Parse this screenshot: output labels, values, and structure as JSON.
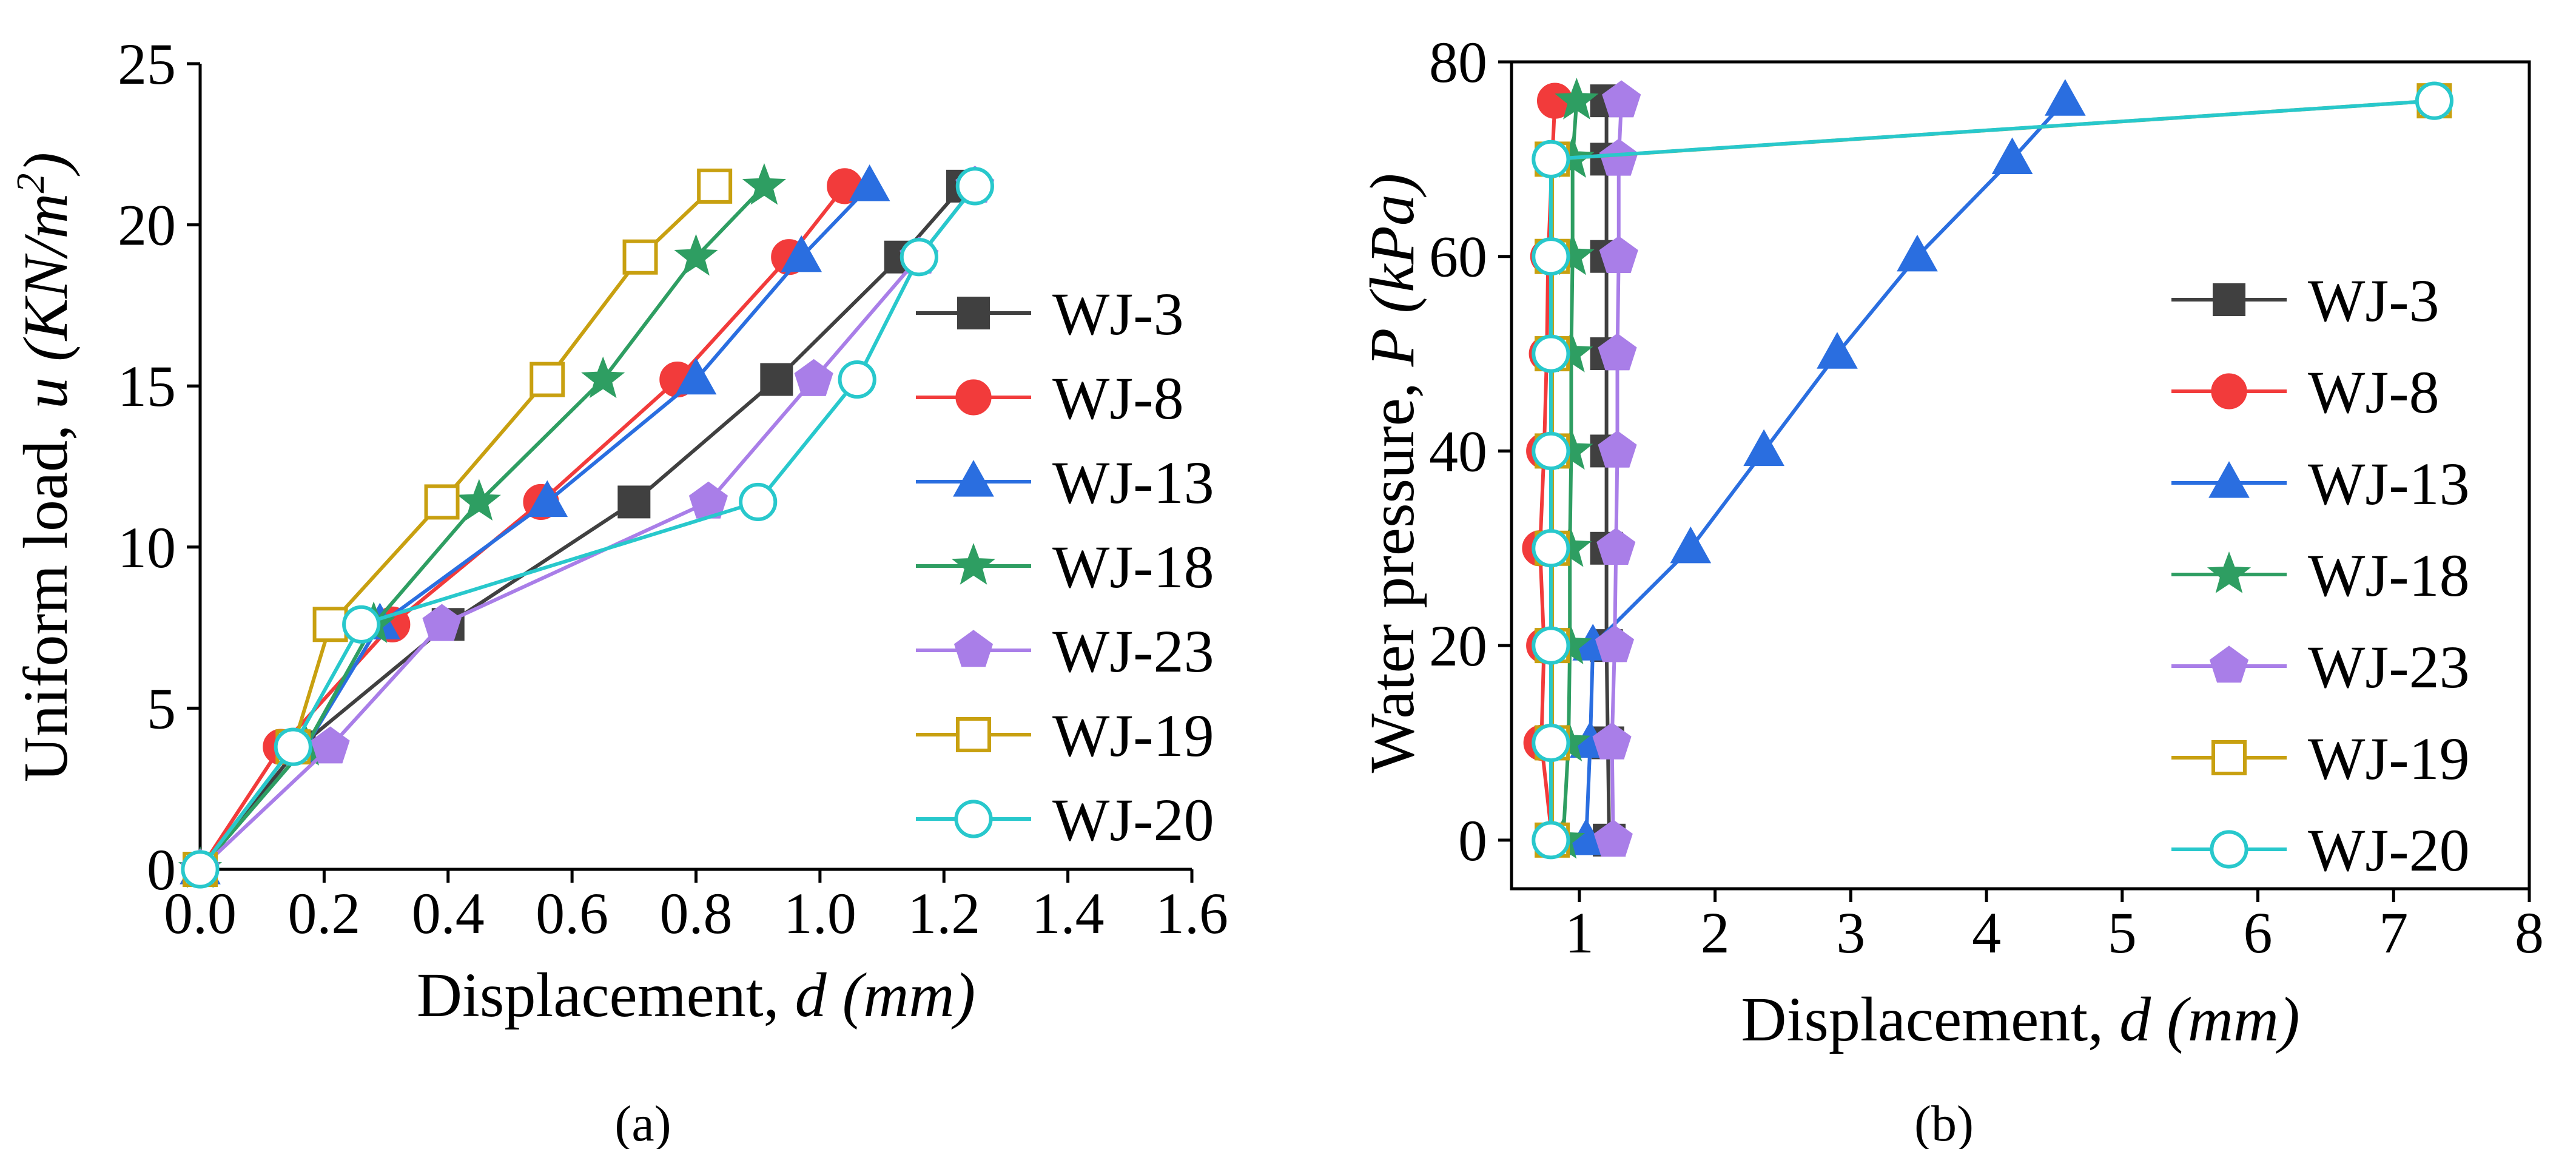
{
  "chart_data": [
    {
      "type": "line",
      "panel_label": "(a)",
      "xlabel": "Displacement, ",
      "xlabel_italic": "d (mm)",
      "ylabel": "Uniform load, ",
      "ylabel_italic": "u (KN/m",
      "ylabel_sup": "2",
      "ylabel_end": ")",
      "xlim": [
        0.0,
        1.6
      ],
      "ylim": [
        0,
        25
      ],
      "xticks": [
        0.0,
        0.2,
        0.4,
        0.6,
        0.8,
        1.0,
        1.2,
        1.4,
        1.6
      ],
      "xtick_labels": [
        "0.0",
        "0.2",
        "0.4",
        "0.6",
        "0.8",
        "1.0",
        "1.2",
        "1.4",
        "1.6"
      ],
      "yticks": [
        0,
        5,
        10,
        15,
        20,
        25
      ],
      "ytick_labels": [
        "0",
        "5",
        "10",
        "15",
        "20",
        "25"
      ],
      "legend_position": "right",
      "series": [
        {
          "name": "WJ-3",
          "color": "#404040",
          "marker": "square",
          "filled": true,
          "x": [
            0,
            0.16,
            0.4,
            0.7,
            0.93,
            1.13,
            1.23
          ],
          "y": [
            0,
            3.8,
            7.6,
            11.4,
            15.2,
            19.0,
            21.2
          ]
        },
        {
          "name": "WJ-8",
          "color": "#f23b3b",
          "marker": "circle",
          "filled": true,
          "x": [
            0,
            0.13,
            0.31,
            0.55,
            0.77,
            0.95,
            1.04
          ],
          "y": [
            0,
            3.8,
            7.6,
            11.4,
            15.2,
            19.0,
            21.2
          ]
        },
        {
          "name": "WJ-13",
          "color": "#2a6ee0",
          "marker": "triangle",
          "filled": true,
          "x": [
            0,
            0.17,
            0.29,
            0.56,
            0.8,
            0.97,
            1.08
          ],
          "y": [
            0,
            3.8,
            7.6,
            11.4,
            15.2,
            19.0,
            21.2
          ]
        },
        {
          "name": "WJ-18",
          "color": "#2e9e62",
          "marker": "star",
          "filled": true,
          "x": [
            0,
            0.17,
            0.28,
            0.45,
            0.65,
            0.8,
            0.91
          ],
          "y": [
            0,
            3.8,
            7.6,
            11.4,
            15.2,
            19.0,
            21.2
          ]
        },
        {
          "name": "WJ-23",
          "color": "#a97ee8",
          "marker": "pentagon",
          "filled": true,
          "x": [
            0,
            0.21,
            0.39,
            0.82,
            0.99,
            1.16,
            1.25
          ],
          "y": [
            0,
            3.8,
            7.6,
            11.4,
            15.2,
            19.0,
            21.2
          ]
        },
        {
          "name": "WJ-19",
          "color": "#c8a010",
          "marker": "square",
          "filled": false,
          "x": [
            0,
            0.15,
            0.21,
            0.39,
            0.56,
            0.71,
            0.83
          ],
          "y": [
            0,
            3.8,
            7.6,
            11.4,
            15.2,
            19.0,
            21.2
          ]
        },
        {
          "name": "WJ-20",
          "color": "#28c8cc",
          "marker": "circle",
          "filled": false,
          "x": [
            0,
            0.15,
            0.26,
            0.9,
            1.06,
            1.16,
            1.25
          ],
          "y": [
            0,
            3.8,
            7.6,
            11.4,
            15.2,
            19.0,
            21.2
          ]
        }
      ]
    },
    {
      "type": "line",
      "panel_label": "(b)",
      "xlabel": "Displacement, ",
      "xlabel_italic": "d (mm)",
      "ylabel": "Water pressure, ",
      "ylabel_italic": "P (kPa)",
      "xlim": [
        0.5,
        8
      ],
      "ylim": [
        -5,
        80
      ],
      "xticks": [
        1,
        2,
        3,
        4,
        5,
        6,
        7,
        8
      ],
      "xtick_labels": [
        "1",
        "2",
        "3",
        "4",
        "5",
        "6",
        "7",
        "8"
      ],
      "yticks": [
        0,
        20,
        40,
        60,
        80
      ],
      "ytick_labels": [
        "0",
        "20",
        "40",
        "60",
        "80"
      ],
      "legend_position": "right",
      "series": [
        {
          "name": "WJ-3",
          "color": "#404040",
          "marker": "square",
          "filled": true,
          "x": [
            1.22,
            1.21,
            1.2,
            1.2,
            1.2,
            1.2,
            1.2,
            1.2,
            1.2
          ],
          "y": [
            0,
            10,
            20,
            30,
            40,
            50,
            60,
            70,
            76
          ]
        },
        {
          "name": "WJ-8",
          "color": "#f23b3b",
          "marker": "circle",
          "filled": true,
          "x": [
            0.8,
            0.72,
            0.74,
            0.71,
            0.74,
            0.76,
            0.77,
            0.8,
            0.82
          ],
          "y": [
            0,
            10,
            20,
            30,
            40,
            50,
            60,
            70,
            76
          ]
        },
        {
          "name": "WJ-13",
          "color": "#2a6ee0",
          "marker": "triangle",
          "filled": true,
          "x": [
            1.05,
            1.08,
            1.1,
            1.82,
            2.36,
            2.9,
            3.49,
            4.19,
            4.58
          ],
          "y": [
            0,
            10,
            20,
            30,
            40,
            50,
            60,
            70,
            76
          ]
        },
        {
          "name": "WJ-18",
          "color": "#2e9e62",
          "marker": "star",
          "filled": true,
          "x": [
            0.88,
            0.92,
            0.93,
            0.93,
            0.94,
            0.94,
            0.95,
            0.95,
            0.98
          ],
          "y": [
            0,
            10,
            20,
            30,
            40,
            50,
            60,
            70,
            76
          ]
        },
        {
          "name": "WJ-23",
          "color": "#a97ee8",
          "marker": "pentagon",
          "filled": true,
          "x": [
            1.25,
            1.24,
            1.26,
            1.27,
            1.28,
            1.28,
            1.29,
            1.29,
            1.31
          ],
          "y": [
            0,
            10,
            20,
            30,
            40,
            50,
            60,
            70,
            76
          ]
        },
        {
          "name": "WJ-19",
          "color": "#c8a010",
          "marker": "square",
          "filled": false,
          "x": [
            0.8,
            0.8,
            0.8,
            0.8,
            0.8,
            0.8,
            0.8,
            0.8,
            7.3
          ],
          "y": [
            0,
            10,
            20,
            30,
            40,
            50,
            60,
            70,
            76
          ]
        },
        {
          "name": "WJ-20",
          "color": "#28c8cc",
          "marker": "circle",
          "filled": false,
          "x": [
            0.79,
            0.79,
            0.79,
            0.79,
            0.79,
            0.79,
            0.79,
            0.79,
            7.3
          ],
          "y": [
            0,
            10,
            20,
            30,
            40,
            50,
            60,
            70,
            76
          ]
        }
      ]
    }
  ]
}
